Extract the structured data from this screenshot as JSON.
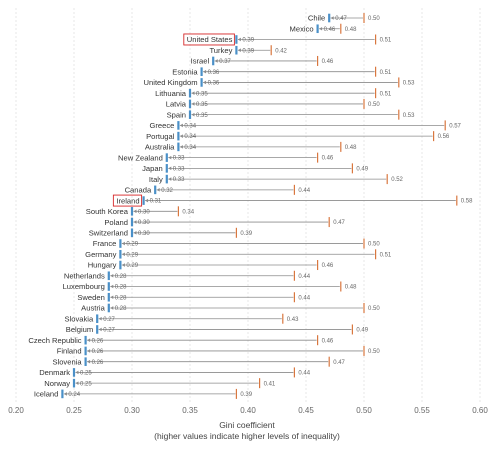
{
  "chart_data": {
    "type": "dumbbell",
    "orientation": "horizontal",
    "xlim": [
      0.2,
      0.6
    ],
    "x_ticks": [
      "0.20",
      "0.25",
      "0.30",
      "0.35",
      "0.40",
      "0.45",
      "0.50",
      "0.55",
      "0.60"
    ],
    "xlabel": "Gini coefficient",
    "xlabel_note": "(higher values indicate higher levels of inequality)",
    "grid": "vertical dashed",
    "highlighted_countries": [
      "United States",
      "Ireland"
    ],
    "colors": {
      "start_marker": "#4a90c8",
      "end_marker": "#d9773f",
      "connector": "#8c8c8c",
      "grid": "#d8d8d8",
      "highlight_box": "#d62728"
    },
    "rows": [
      {
        "country": "Chile",
        "start": 0.47,
        "end": 0.5,
        "start_label": "0.47",
        "end_label": "0.50"
      },
      {
        "country": "Mexico",
        "start": 0.46,
        "end": 0.48,
        "start_label": "0.46",
        "end_label": "0.48"
      },
      {
        "country": "United States",
        "start": 0.39,
        "end": 0.51,
        "start_label": "0.39",
        "end_label": "0.51"
      },
      {
        "country": "Turkey",
        "start": 0.39,
        "end": 0.42,
        "start_label": "0.39",
        "end_label": "0.42"
      },
      {
        "country": "Israel",
        "start": 0.37,
        "end": 0.46,
        "start_label": "0.37",
        "end_label": "0.46"
      },
      {
        "country": "Estonia",
        "start": 0.36,
        "end": 0.51,
        "start_label": "0.36",
        "end_label": "0.51"
      },
      {
        "country": "United Kingdom",
        "start": 0.36,
        "end": 0.53,
        "start_label": "0.36",
        "end_label": "0.53"
      },
      {
        "country": "Lithuania",
        "start": 0.35,
        "end": 0.51,
        "start_label": "0.35",
        "end_label": "0.51"
      },
      {
        "country": "Latvia",
        "start": 0.35,
        "end": 0.5,
        "start_label": "0.35",
        "end_label": "0.50"
      },
      {
        "country": "Spain",
        "start": 0.35,
        "end": 0.53,
        "start_label": "0.35",
        "end_label": "0.53"
      },
      {
        "country": "Greece",
        "start": 0.34,
        "end": 0.57,
        "start_label": "0.34",
        "end_label": "0.57"
      },
      {
        "country": "Portugal",
        "start": 0.34,
        "end": 0.56,
        "start_label": "0.34",
        "end_label": "0.56"
      },
      {
        "country": "Australia",
        "start": 0.34,
        "end": 0.48,
        "start_label": "0.34",
        "end_label": "0.48"
      },
      {
        "country": "New Zealand",
        "start": 0.33,
        "end": 0.46,
        "start_label": "0.33",
        "end_label": "0.46"
      },
      {
        "country": "Japan",
        "start": 0.33,
        "end": 0.49,
        "start_label": "0.33",
        "end_label": "0.49"
      },
      {
        "country": "Italy",
        "start": 0.33,
        "end": 0.52,
        "start_label": "0.33",
        "end_label": "0.52"
      },
      {
        "country": "Canada",
        "start": 0.32,
        "end": 0.44,
        "start_label": "0.32",
        "end_label": "0.44"
      },
      {
        "country": "Ireland",
        "start": 0.31,
        "end": 0.58,
        "start_label": "0.31",
        "end_label": "0.58"
      },
      {
        "country": "South Korea",
        "start": 0.3,
        "end": 0.34,
        "start_label": "0.30",
        "end_label": "0.34"
      },
      {
        "country": "Poland",
        "start": 0.3,
        "end": 0.47,
        "start_label": "0.30",
        "end_label": "0.47"
      },
      {
        "country": "Switzerland",
        "start": 0.3,
        "end": 0.39,
        "start_label": "0.30",
        "end_label": "0.39"
      },
      {
        "country": "France",
        "start": 0.29,
        "end": 0.5,
        "start_label": "0.29",
        "end_label": "0.50"
      },
      {
        "country": "Germany",
        "start": 0.29,
        "end": 0.51,
        "start_label": "0.29",
        "end_label": "0.51"
      },
      {
        "country": "Hungary",
        "start": 0.29,
        "end": 0.46,
        "start_label": "0.29",
        "end_label": "0.46"
      },
      {
        "country": "Netherlands",
        "start": 0.28,
        "end": 0.44,
        "start_label": "0.28",
        "end_label": "0.44"
      },
      {
        "country": "Luxembourg",
        "start": 0.28,
        "end": 0.48,
        "start_label": "0.28",
        "end_label": "0.48"
      },
      {
        "country": "Sweden",
        "start": 0.28,
        "end": 0.44,
        "start_label": "0.28",
        "end_label": "0.44"
      },
      {
        "country": "Austria",
        "start": 0.28,
        "end": 0.5,
        "start_label": "0.28",
        "end_label": "0.50"
      },
      {
        "country": "Slovakia",
        "start": 0.27,
        "end": 0.43,
        "start_label": "0.27",
        "end_label": "0.43"
      },
      {
        "country": "Belgium",
        "start": 0.27,
        "end": 0.49,
        "start_label": "0.27",
        "end_label": "0.49"
      },
      {
        "country": "Czech Republic",
        "start": 0.26,
        "end": 0.46,
        "start_label": "0.26",
        "end_label": "0.46"
      },
      {
        "country": "Finland",
        "start": 0.26,
        "end": 0.5,
        "start_label": "0.26",
        "end_label": "0.50"
      },
      {
        "country": "Slovenia",
        "start": 0.26,
        "end": 0.47,
        "start_label": "0.26",
        "end_label": "0.47"
      },
      {
        "country": "Denmark",
        "start": 0.25,
        "end": 0.44,
        "start_label": "0.25",
        "end_label": "0.44"
      },
      {
        "country": "Norway",
        "start": 0.25,
        "end": 0.41,
        "start_label": "0.25",
        "end_label": "0.41"
      },
      {
        "country": "Iceland",
        "start": 0.24,
        "end": 0.39,
        "start_label": "0.24",
        "end_label": "0.39"
      }
    ]
  }
}
